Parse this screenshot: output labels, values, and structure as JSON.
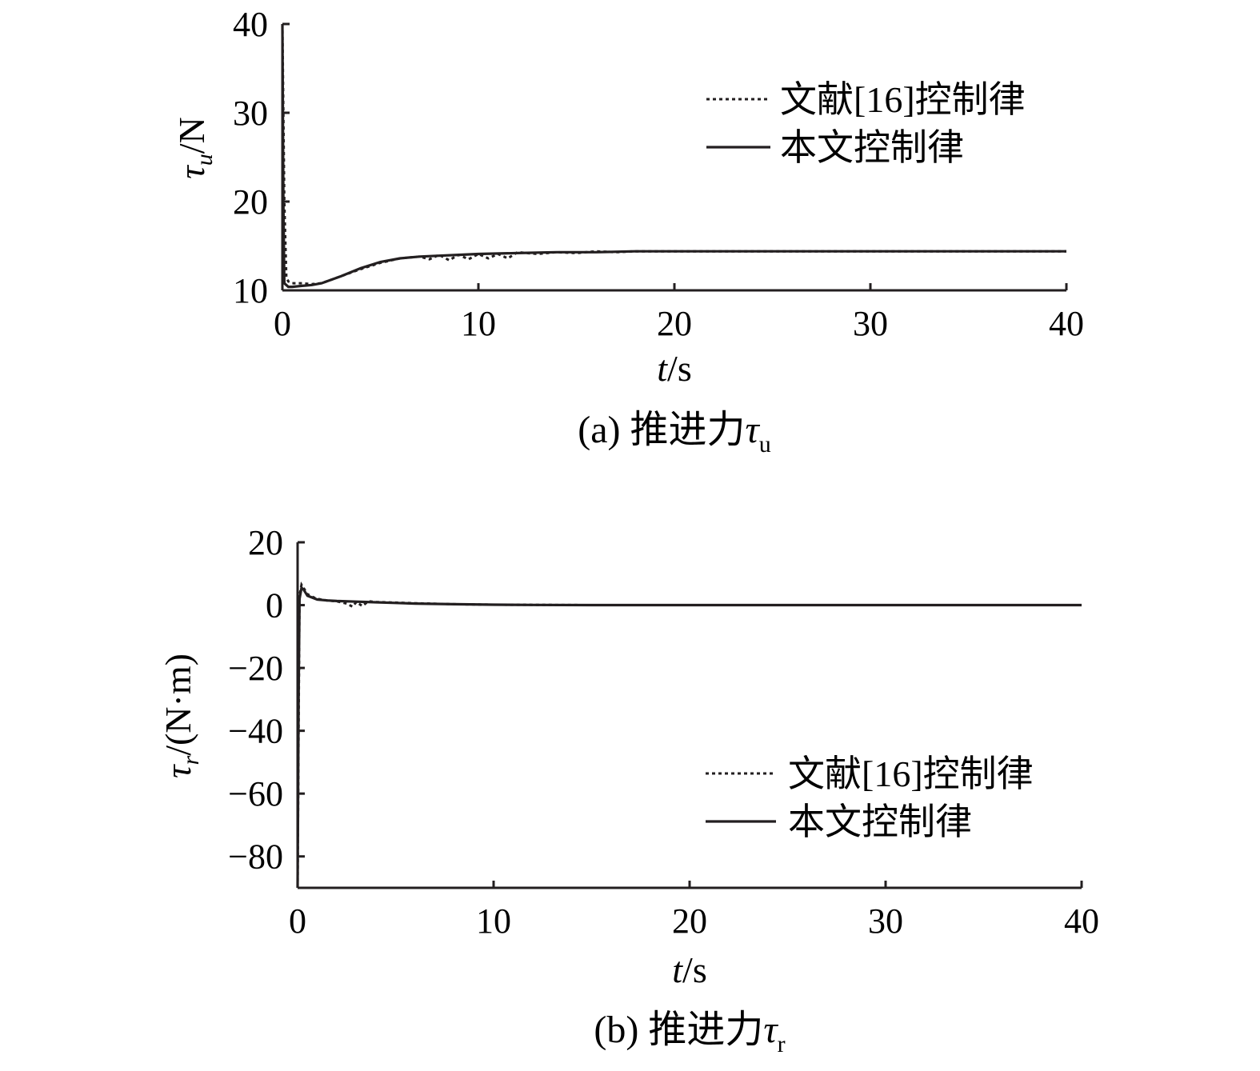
{
  "chart_data": [
    {
      "type": "line",
      "ylabel": {
        "sym": "τ",
        "sub": "u",
        "unit": "/N"
      },
      "xlabel": {
        "sym": "t",
        "unit": "/s"
      },
      "xlim": [
        0,
        40
      ],
      "ylim": [
        10,
        40
      ],
      "xticks": [
        0,
        10,
        20,
        30,
        40
      ],
      "yticks": [
        10,
        20,
        30,
        40
      ],
      "caption": {
        "prefix": "(a) 推进力",
        "sym": "τ",
        "sub": "u"
      },
      "legend_position": "top-right",
      "series": [
        {
          "name": "文献[16]控制律",
          "style": "dotted",
          "x": [
            0,
            0.05,
            0.1,
            0.2,
            0.3,
            0.5,
            1,
            1.5,
            2,
            3,
            4,
            5,
            6,
            7,
            7.5,
            8,
            8.5,
            9,
            9.5,
            10,
            10.5,
            11,
            11.5,
            12,
            13,
            14,
            15,
            16,
            17,
            18,
            20,
            25,
            30,
            35,
            40
          ],
          "y": [
            40,
            30,
            20,
            11.5,
            11.0,
            10.8,
            10.8,
            10.7,
            10.8,
            11.6,
            12.4,
            13.1,
            13.6,
            13.8,
            13.5,
            14.0,
            13.4,
            14.0,
            13.5,
            14.1,
            13.6,
            14.1,
            13.6,
            14.3,
            14.1,
            14.3,
            14.2,
            14.4,
            14.3,
            14.4,
            14.4,
            14.4,
            14.4,
            14.4,
            14.4
          ]
        },
        {
          "name": "本文控制律",
          "style": "solid",
          "x": [
            0,
            0.05,
            0.1,
            0.3,
            0.5,
            1,
            1.5,
            2,
            3,
            4,
            5,
            6,
            7,
            8,
            9,
            10,
            12,
            14,
            16,
            18,
            20,
            25,
            30,
            35,
            40
          ],
          "y": [
            40,
            20,
            10.8,
            10.4,
            10.4,
            10.5,
            10.6,
            10.8,
            11.6,
            12.5,
            13.2,
            13.6,
            13.8,
            13.9,
            14.0,
            14.1,
            14.2,
            14.3,
            14.3,
            14.4,
            14.4,
            14.4,
            14.4,
            14.4,
            14.4
          ]
        }
      ]
    },
    {
      "type": "line",
      "ylabel": {
        "sym": "τ",
        "sub": "r",
        "unit": "/(N·m)"
      },
      "xlabel": {
        "sym": "t",
        "unit": "/s"
      },
      "xlim": [
        0,
        40
      ],
      "ylim": [
        -90,
        20
      ],
      "xticks": [
        0,
        10,
        20,
        30,
        40
      ],
      "yticks": [
        20,
        0,
        -20,
        -40,
        -60,
        -80
      ],
      "ytick_labels": [
        "20",
        "0",
        "−20",
        "−40",
        "−60",
        "−80"
      ],
      "caption": {
        "prefix": "(b) 推进力",
        "sym": "τ",
        "sub": "r"
      },
      "legend_position": "bottom-right",
      "series": [
        {
          "name": "文献[16]控制律",
          "style": "dotted",
          "x": [
            0,
            0.05,
            0.1,
            0.2,
            0.3,
            0.5,
            0.8,
            1,
            1.5,
            2,
            2.5,
            2.8,
            3,
            3.3,
            3.6,
            4,
            5,
            6,
            8,
            10,
            12,
            13,
            15,
            20,
            30,
            40
          ],
          "y": [
            -90,
            -40,
            3,
            6.5,
            5.5,
            3.5,
            2.5,
            2.0,
            1.5,
            1.2,
            0.5,
            -0.5,
            1.0,
            -0.3,
            1.2,
            1.0,
            0.8,
            0.6,
            0.3,
            0.15,
            0.1,
            0.05,
            0,
            0,
            0,
            0
          ]
        },
        {
          "name": "本文控制律",
          "style": "solid",
          "x": [
            0,
            0.05,
            0.1,
            0.2,
            0.3,
            0.5,
            1,
            1.5,
            2,
            3,
            4,
            5,
            6,
            8,
            10,
            12,
            15,
            20,
            30,
            40
          ],
          "y": [
            -90,
            -30,
            2,
            5.5,
            5.0,
            3.0,
            1.8,
            1.5,
            1.3,
            1.1,
            0.9,
            0.7,
            0.5,
            0.3,
            0.15,
            0.05,
            0,
            0,
            0,
            0
          ]
        }
      ]
    }
  ]
}
